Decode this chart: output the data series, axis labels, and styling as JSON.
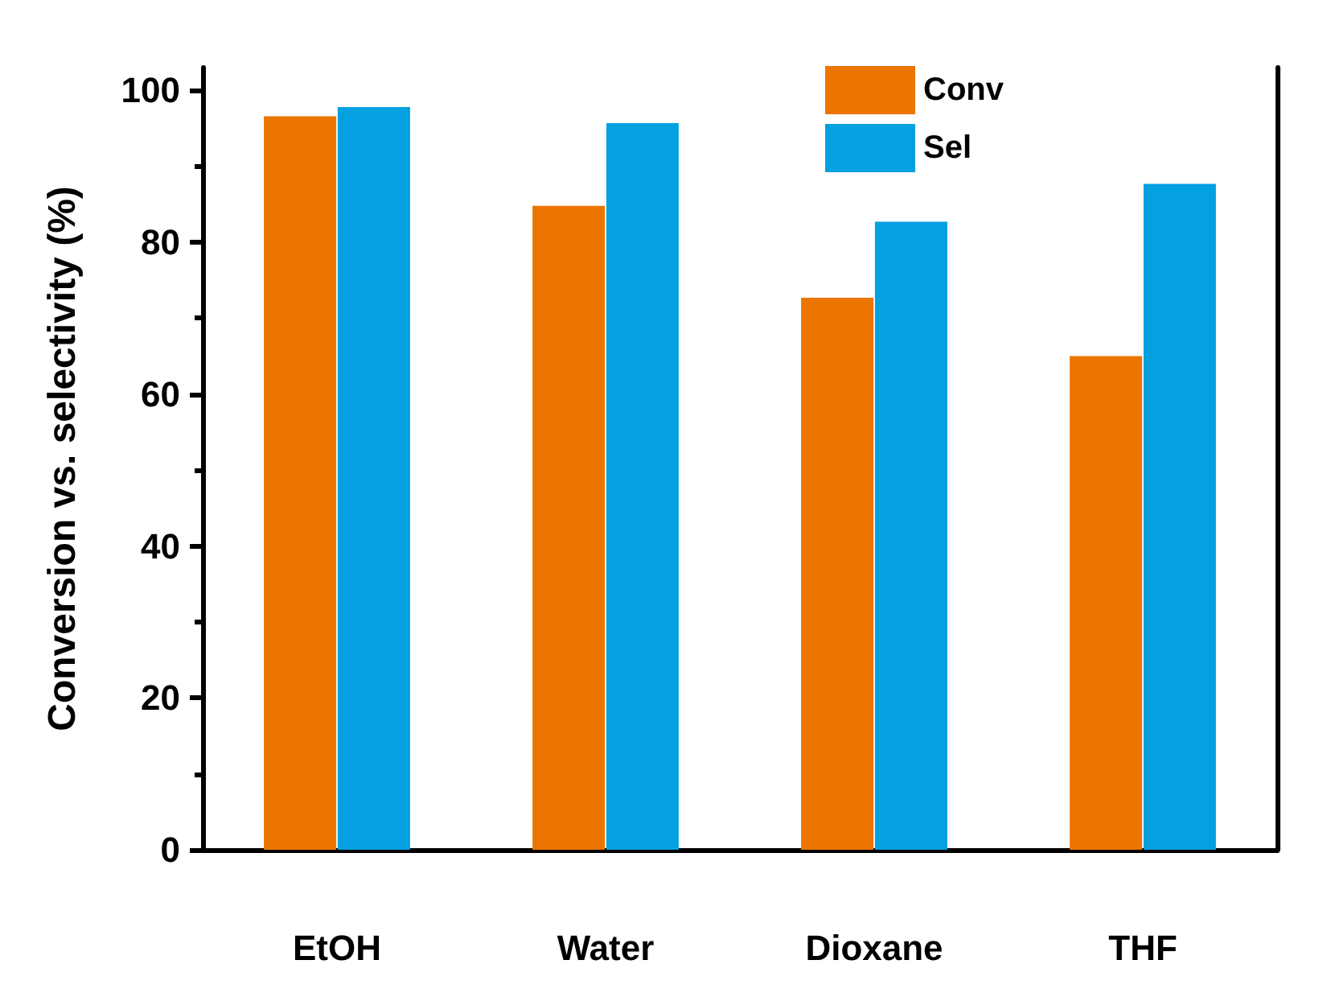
{
  "chart_data": {
    "type": "bar",
    "ylabel": "Conversion vs. selectivity (%)",
    "categories": [
      "EtOH",
      "Water",
      "Dioxane",
      "THF"
    ],
    "series": [
      {
        "name": "Conv",
        "color": "#ec7500",
        "values": [
          96.6,
          84.8,
          72.7,
          65
        ]
      },
      {
        "name": "Sel",
        "color": "#05a0e0",
        "values": [
          97.8,
          95.7,
          82.7,
          87.7
        ]
      }
    ],
    "ylim": [
      0,
      103
    ],
    "yticks": [
      0,
      20,
      40,
      60,
      80,
      100
    ],
    "grid": false,
    "legend": "top"
  }
}
